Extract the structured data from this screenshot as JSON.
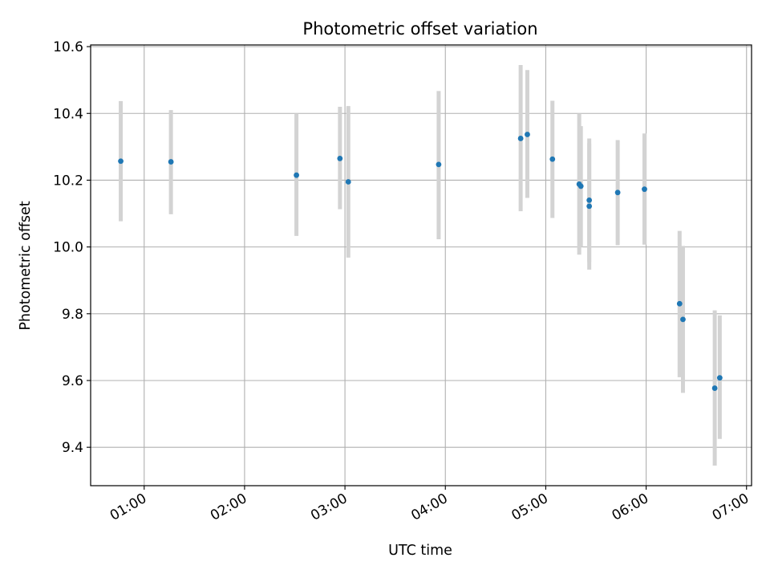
{
  "chart_data": {
    "type": "scatter",
    "title": "Photometric offset variation",
    "xlabel": "UTC time",
    "ylabel": "Photometric offset",
    "xlim": [
      "00:28",
      "07:03"
    ],
    "ylim": [
      9.285,
      10.605
    ],
    "x_ticks": [
      "01:00",
      "02:00",
      "03:00",
      "04:00",
      "05:00",
      "06:00",
      "07:00"
    ],
    "y_ticks": [
      "9.4",
      "9.6",
      "9.8",
      "10.0",
      "10.2",
      "10.4",
      "10.6"
    ],
    "grid": true,
    "x_tick_label_rotation": 30,
    "points": [
      {
        "x": "00:46",
        "y": 10.257,
        "err_low": 10.077,
        "err_high": 10.437
      },
      {
        "x": "01:16",
        "y": 10.255,
        "err_low": 10.098,
        "err_high": 10.41
      },
      {
        "x": "02:31",
        "y": 10.215,
        "err_low": 10.033,
        "err_high": 10.4
      },
      {
        "x": "02:57",
        "y": 10.265,
        "err_low": 10.113,
        "err_high": 10.42
      },
      {
        "x": "03:02",
        "y": 10.195,
        "err_low": 9.968,
        "err_high": 10.422
      },
      {
        "x": "03:56",
        "y": 10.247,
        "err_low": 10.023,
        "err_high": 10.467
      },
      {
        "x": "04:45",
        "y": 10.325,
        "err_low": 10.107,
        "err_high": 10.545
      },
      {
        "x": "04:49",
        "y": 10.337,
        "err_low": 10.147,
        "err_high": 10.53
      },
      {
        "x": "05:04",
        "y": 10.263,
        "err_low": 10.087,
        "err_high": 10.438
      },
      {
        "x": "05:20",
        "y": 10.188,
        "err_low": 9.977,
        "err_high": 10.4
      },
      {
        "x": "05:21",
        "y": 10.182,
        "err_low": 10.0,
        "err_high": 10.362
      },
      {
        "x": "05:26",
        "y": 10.14,
        "err_low": 9.955,
        "err_high": 10.325
      },
      {
        "x": "05:26",
        "y": 10.122,
        "err_low": 9.932,
        "err_high": 10.31
      },
      {
        "x": "05:43",
        "y": 10.163,
        "err_low": 10.005,
        "err_high": 10.32
      },
      {
        "x": "05:59",
        "y": 10.173,
        "err_low": 10.007,
        "err_high": 10.34
      },
      {
        "x": "06:20",
        "y": 9.83,
        "err_low": 9.61,
        "err_high": 10.048
      },
      {
        "x": "06:22",
        "y": 9.783,
        "err_low": 9.563,
        "err_high": 10.003
      },
      {
        "x": "06:41",
        "y": 9.577,
        "err_low": 9.345,
        "err_high": 9.81
      },
      {
        "x": "06:44",
        "y": 9.608,
        "err_low": 9.425,
        "err_high": 9.795
      }
    ],
    "marker_color": "#1f77b4",
    "errorbar_color": "#d3d3d3",
    "grid_color": "#b0b0b0"
  }
}
